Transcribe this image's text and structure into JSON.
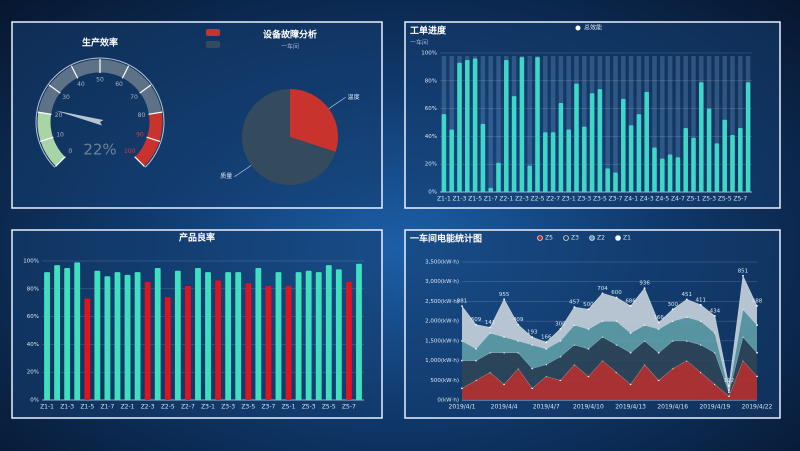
{
  "chart_data": [
    {
      "type": "gauge",
      "title": "生产效率",
      "value": 22,
      "value_label": "22%",
      "ylim": [
        0,
        100
      ],
      "yticks": [
        0,
        10,
        20,
        30,
        40,
        50,
        60,
        70,
        80,
        90,
        100
      ],
      "bands": [
        {
          "to": 20,
          "color": "#a9d4a5"
        },
        {
          "to": 80,
          "color": "#5d7287"
        },
        {
          "to": 100,
          "color": "#c8332e"
        }
      ]
    },
    {
      "type": "pie",
      "title": "设备故障分析",
      "subtitle": "一车间",
      "categories": [
        "温度",
        "质量"
      ],
      "values": [
        30,
        70
      ],
      "colors": [
        "#c8332e",
        "#344b5e"
      ]
    },
    {
      "type": "bar",
      "title": "工单进度",
      "subtitle": "一车间",
      "series_name": "总效能",
      "color": "#3fd8c8",
      "show_background": true,
      "categories": [
        "Z1-1",
        null,
        "Z1-3",
        null,
        "Z1-5",
        null,
        "Z1-7",
        null,
        "Z2-1",
        null,
        "Z2-3",
        null,
        "Z2-5",
        null,
        "Z2-7",
        null,
        "Z3-1",
        null,
        "Z3-3",
        null,
        "Z3-5",
        null,
        "Z3-7",
        null,
        "Z4-1",
        null,
        "Z4-3",
        null,
        "Z4-5",
        null,
        "Z4-7",
        null,
        "Z5-1",
        null,
        "Z5-3",
        null,
        "Z5-5",
        null,
        "Z5-7",
        null
      ],
      "values": [
        56,
        45,
        93,
        95,
        96,
        49,
        3,
        21,
        95,
        69,
        97,
        19,
        97,
        43,
        43,
        64,
        45,
        78,
        47,
        71,
        74,
        17,
        14,
        67,
        48,
        56,
        72,
        32,
        24,
        27,
        25,
        46,
        39,
        79,
        60,
        35,
        52,
        41,
        46,
        79
      ],
      "ylim": [
        0,
        100
      ],
      "yticks": [
        {
          "value": 0,
          "label": "0%"
        },
        {
          "value": 20,
          "label": "20%"
        },
        {
          "value": 40,
          "label": "40%"
        },
        {
          "value": 60,
          "label": "60%"
        },
        {
          "value": 80,
          "label": "80%"
        },
        {
          "value": 100,
          "label": "100%"
        }
      ]
    },
    {
      "type": "bar",
      "title": "产品良率",
      "categories": [
        "Z1-1",
        null,
        "Z1-3",
        null,
        "Z1-5",
        null,
        "Z1-7",
        null,
        "Z2-1",
        null,
        "Z2-3",
        null,
        "Z2-5",
        null,
        "Z2-7",
        null,
        "Z3-1",
        null,
        "Z3-3",
        null,
        "Z3-5",
        null,
        "Z3-7",
        null,
        "Z5-1",
        null,
        "Z5-3",
        null,
        "Z5-5",
        null,
        "Z5-7",
        null
      ],
      "values": [
        92,
        97,
        95,
        99,
        73,
        93,
        89,
        92,
        90,
        92,
        85,
        95,
        74,
        93,
        82,
        95,
        92,
        86,
        92,
        92,
        84,
        95,
        82,
        92,
        82,
        92,
        93,
        92,
        97,
        94,
        85,
        98
      ],
      "colors": [
        "#3fe0c0",
        "#3fe0c0",
        "#3fe0c0",
        "#3fe0c0",
        "#e0141e",
        "#3fe0c0",
        "#3fe0c0",
        "#3fe0c0",
        "#3fe0c0",
        "#3fe0c0",
        "#e0141e",
        "#3fe0c0",
        "#e0141e",
        "#3fe0c0",
        "#e0141e",
        "#3fe0c0",
        "#3fe0c0",
        "#e0141e",
        "#3fe0c0",
        "#3fe0c0",
        "#e0141e",
        "#3fe0c0",
        "#e0141e",
        "#3fe0c0",
        "#e0141e",
        "#3fe0c0",
        "#3fe0c0",
        "#3fe0c0",
        "#3fe0c0",
        "#3fe0c0",
        "#e0141e",
        "#3fe0c0"
      ],
      "ylim": [
        0,
        100
      ],
      "yticks": [
        {
          "value": 0,
          "label": "0%"
        },
        {
          "value": 20,
          "label": "20%"
        },
        {
          "value": 40,
          "label": "40%"
        },
        {
          "value": 60,
          "label": "60%"
        },
        {
          "value": 80,
          "label": "80%"
        },
        {
          "value": 100,
          "label": "100%"
        }
      ]
    },
    {
      "type": "stacked_area",
      "title": "一车间电能统计图",
      "x": [
        "2019/4/1",
        null,
        null,
        "2019/4/4",
        null,
        null,
        "2019/4/7",
        null,
        null,
        "2019/4/10",
        null,
        null,
        "2019/4/13",
        null,
        null,
        "2019/4/16",
        null,
        null,
        "2019/4/19",
        null,
        null,
        "2019/4/22"
      ],
      "series": [
        {
          "name": "Z5",
          "color": "#b8312e",
          "values": [
            300,
            500,
            700,
            400,
            800,
            300,
            600,
            500,
            900,
            600,
            1000,
            700,
            400,
            900,
            500,
            800,
            1000,
            700,
            400,
            100,
            1000,
            600
          ]
        },
        {
          "name": "Z3",
          "color": "#2e4556",
          "values": [
            700,
            500,
            500,
            800,
            400,
            500,
            300,
            600,
            500,
            700,
            600,
            700,
            800,
            600,
            700,
            700,
            500,
            700,
            800,
            100,
            600,
            600
          ]
        },
        {
          "name": "Z2",
          "color": "#5f9ea8",
          "values": [
            500,
            300,
            500,
            400,
            300,
            600,
            400,
            400,
            500,
            500,
            400,
            600,
            500,
            400,
            600,
            500,
            600,
            600,
            500,
            50,
            700,
            700
          ]
        },
        {
          "name": "Z1",
          "color": "#c9d3dc",
          "values": [
            881,
            609,
            141,
            955,
            409,
            193,
            166,
            300,
            457,
            500,
            704,
            600,
            686,
            936,
            166,
            300,
            451,
            411,
            434,
            112,
            851,
            488
          ]
        }
      ],
      "ylim": [
        0,
        3500
      ],
      "yticks": [
        {
          "value": 0,
          "label": "0(kW·h)"
        },
        {
          "value": 500,
          "label": "500(kW·h)"
        },
        {
          "value": 1000,
          "label": "1,000(kW·h)"
        },
        {
          "value": 1500,
          "label": "1,500(kW·h)"
        },
        {
          "value": 2000,
          "label": "2,000(kW·h)"
        },
        {
          "value": 2500,
          "label": "2,500(kW·h)"
        },
        {
          "value": 3000,
          "label": "3,000(kW·h)"
        },
        {
          "value": 3500,
          "label": "3,500(kW·h)"
        }
      ]
    }
  ]
}
